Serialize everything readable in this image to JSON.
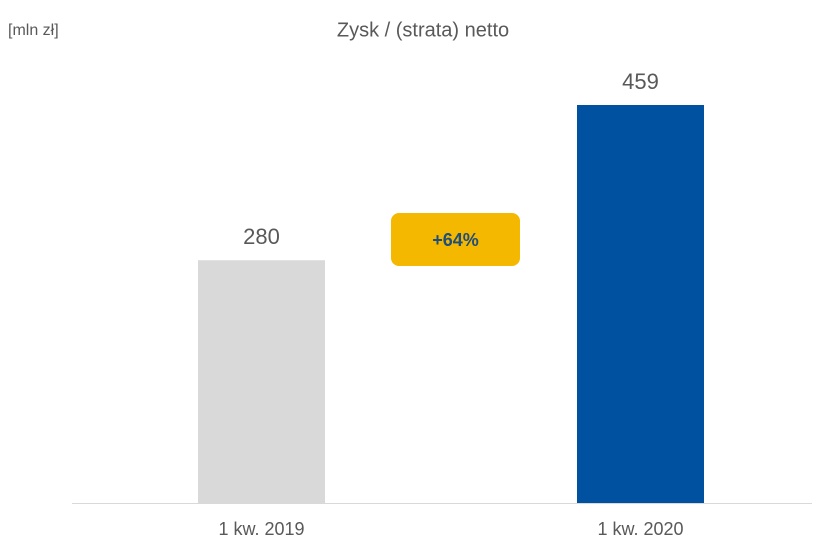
{
  "chart_data": {
    "type": "bar",
    "title": "Zysk / (strata) netto",
    "unit_label": "[mln zł]",
    "categories": [
      "1 kw. 2019",
      "1 kw. 2020"
    ],
    "values": [
      280,
      459
    ],
    "colors": [
      "#d9d9d9",
      "#0051a0"
    ],
    "annotation": {
      "text": "+64%",
      "color": "#f5b800",
      "text_color": "#1f4e79"
    }
  }
}
